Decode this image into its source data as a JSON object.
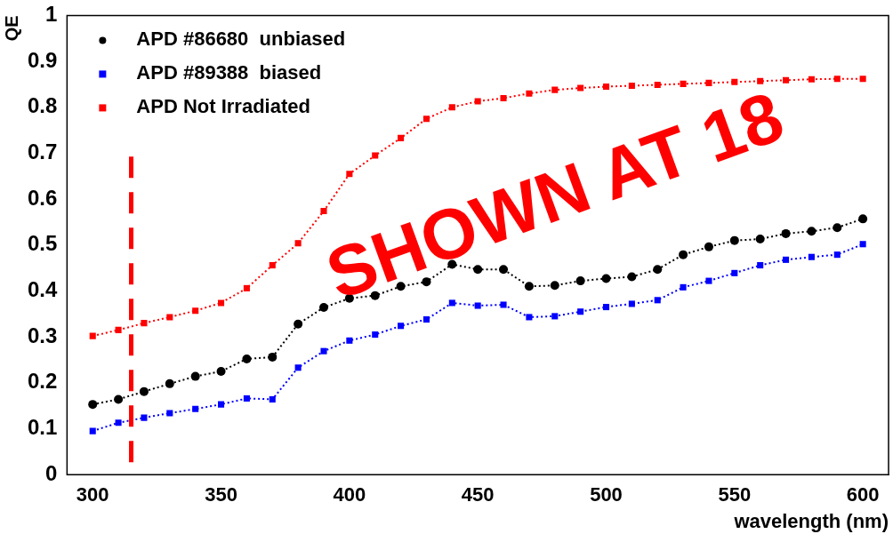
{
  "chart_data": {
    "type": "line",
    "xlabel": "wavelength (nm)",
    "ylabel": "QE",
    "x": [
      300,
      310,
      320,
      330,
      340,
      350,
      360,
      370,
      380,
      390,
      400,
      410,
      420,
      430,
      440,
      450,
      460,
      470,
      480,
      490,
      500,
      510,
      520,
      530,
      540,
      550,
      560,
      570,
      580,
      590,
      600
    ],
    "series": [
      {
        "name": "APD #86680  unbiased",
        "color": "#000000",
        "marker": "circle",
        "values": [
          0.153,
          0.164,
          0.181,
          0.198,
          0.214,
          0.225,
          0.252,
          0.256,
          0.328,
          0.364,
          0.384,
          0.39,
          0.41,
          0.42,
          0.458,
          0.447,
          0.447,
          0.41,
          0.412,
          0.422,
          0.427,
          0.431,
          0.447,
          0.479,
          0.496,
          0.51,
          0.513,
          0.525,
          0.53,
          0.538,
          0.557
        ]
      },
      {
        "name": "APD #89388  biased",
        "color": "#0000ff",
        "marker": "square",
        "values": [
          0.095,
          0.113,
          0.124,
          0.134,
          0.143,
          0.153,
          0.166,
          0.164,
          0.233,
          0.269,
          0.292,
          0.305,
          0.324,
          0.338,
          0.374,
          0.368,
          0.37,
          0.343,
          0.345,
          0.355,
          0.365,
          0.372,
          0.38,
          0.408,
          0.422,
          0.439,
          0.456,
          0.468,
          0.474,
          0.479,
          0.502
        ]
      },
      {
        "name": "APD Not Irradiated",
        "color": "#ff0000",
        "marker": "square",
        "values": [
          0.302,
          0.315,
          0.33,
          0.343,
          0.357,
          0.374,
          0.406,
          0.456,
          0.504,
          0.574,
          0.655,
          0.695,
          0.733,
          0.775,
          0.8,
          0.813,
          0.82,
          0.83,
          0.838,
          0.842,
          0.845,
          0.847,
          0.849,
          0.851,
          0.853,
          0.855,
          0.857,
          0.859,
          0.861,
          0.862,
          0.862
        ]
      }
    ],
    "line_style": "dotted",
    "grid": false,
    "legend": "top left",
    "xlim": [
      290,
      610
    ],
    "xticks": [
      300,
      350,
      400,
      450,
      500,
      550,
      600
    ],
    "ylim": [
      0,
      1
    ],
    "yticks": [
      0,
      0.1,
      0.2,
      0.3,
      0.4,
      0.5,
      0.6,
      0.7,
      0.8,
      0.9,
      1
    ],
    "ref_lines": [
      {
        "axis": "x",
        "value": 315,
        "color": "#ff0000",
        "line_style": "dashed"
      }
    ],
    "annotations": [
      "SHOWN AT 18"
    ]
  }
}
